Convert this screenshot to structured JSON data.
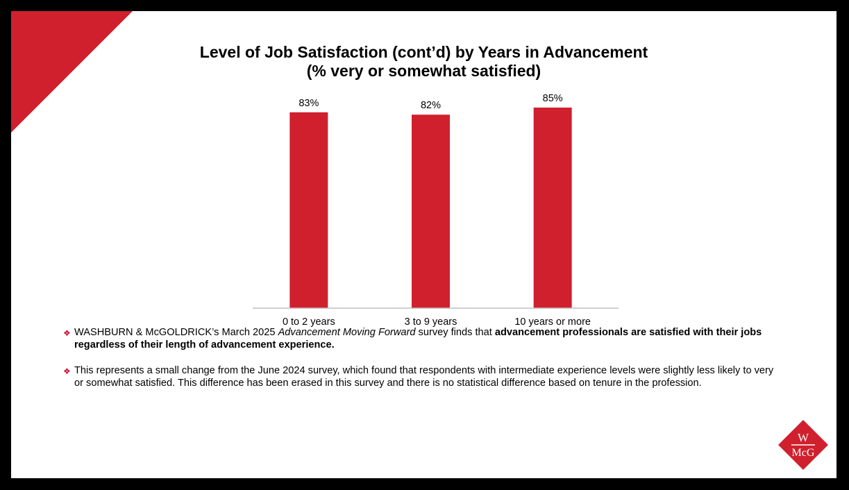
{
  "title": {
    "line1": "Level of Job Satisfaction (cont’d) by Years in Advancement",
    "line2": "(% very or somewhat satisfied)"
  },
  "colors": {
    "accent": "#D0202E",
    "axis": "#BFBFBF"
  },
  "chart_data": {
    "type": "bar",
    "title": "Level of Job Satisfaction (cont’d) by Years in Advancement",
    "subtitle": "(% very or somewhat satisfied)",
    "categories": [
      "0 to 2 years",
      "3 to 9 years",
      "10 years or more"
    ],
    "values": [
      83,
      82,
      85
    ],
    "value_labels": [
      "83%",
      "82%",
      "85%"
    ],
    "ylim": [
      0,
      100
    ],
    "grid": false,
    "legend": "none"
  },
  "notes": [
    {
      "parts": [
        {
          "text": "WASHBURN & McGOLDRICK’s March 2025 ",
          "style": "normal"
        },
        {
          "text": "Advancement Moving Forward",
          "style": "italic"
        },
        {
          "text": " survey finds that ",
          "style": "normal"
        },
        {
          "text": "advancement professionals are satisfied with their jobs regardless of their length of advancement experience.",
          "style": "bold"
        }
      ]
    },
    {
      "parts": [
        {
          "text": "This represents a small change from the June 2024 survey, which found that respondents with intermediate experience levels were slightly less likely to very or somewhat satisfied. This difference has been erased in this survey and there is no statistical difference based on tenure in the profession.",
          "style": "normal"
        }
      ]
    }
  ],
  "bullet_glyph": "❖",
  "logo": {
    "top": "W",
    "bottom": "McG"
  }
}
